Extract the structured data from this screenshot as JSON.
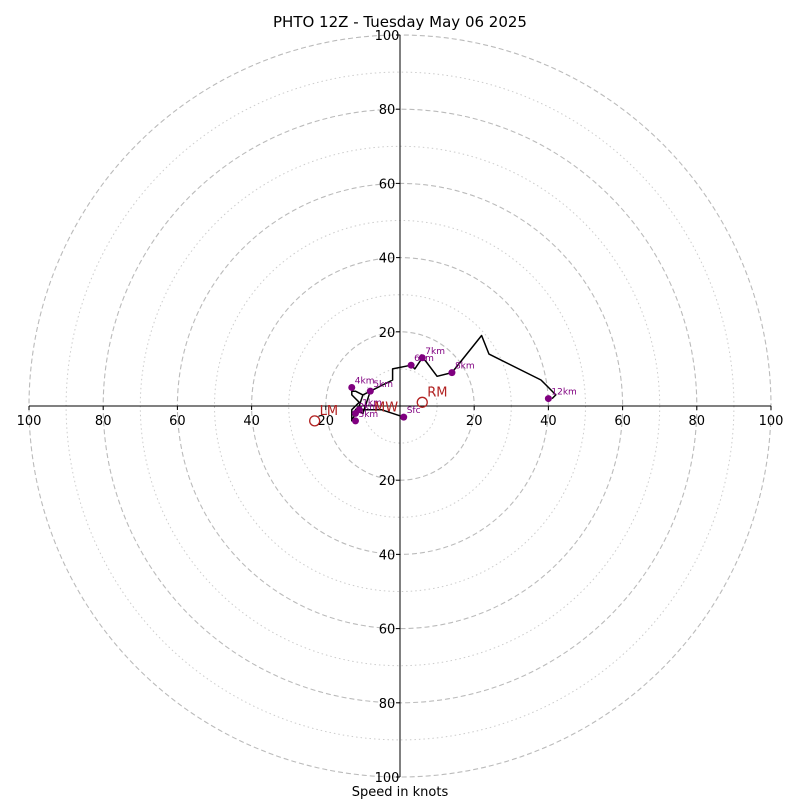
{
  "chart_data": {
    "type": "line",
    "title": "PHTO 12Z - Tuesday May 06 2025",
    "xlabel": "Speed in knots",
    "ylabel": "",
    "xlim": [
      -100,
      100
    ],
    "ylim": [
      -100,
      100
    ],
    "ring_major": [
      20,
      40,
      60,
      80,
      100
    ],
    "ring_minor": [
      10,
      30,
      50,
      70,
      90
    ],
    "x_tick_labels": [
      "100",
      "80",
      "60",
      "40",
      "20",
      "20",
      "40",
      "60",
      "80",
      "100"
    ],
    "x_tick_values": [
      -100,
      -80,
      -60,
      -40,
      -20,
      20,
      40,
      60,
      80,
      100
    ],
    "y_tick_labels": [
      "100",
      "80",
      "60",
      "40",
      "20",
      "20",
      "40",
      "60",
      "80",
      "100"
    ],
    "y_tick_values": [
      100,
      80,
      60,
      40,
      20,
      -20,
      -40,
      -60,
      -80,
      -100
    ],
    "colors": {
      "trace": "#000000",
      "height_points": "#800080",
      "motion": "#b22222",
      "ring_major": "#bbbbbb",
      "ring_minor": "#cccccc"
    },
    "series": [
      {
        "values": [
          [
            1,
            -3
          ],
          [
            -5,
            -1
          ],
          [
            -8,
            -1
          ],
          [
            -10,
            -1
          ],
          [
            -12,
            -2
          ],
          [
            -13,
            -4
          ],
          [
            -13,
            -3
          ],
          [
            -13,
            -1
          ],
          [
            -12,
            0
          ],
          [
            -11,
            1
          ],
          [
            -13,
            3
          ],
          [
            -13,
            4
          ],
          [
            -12,
            4
          ],
          [
            -10,
            3
          ],
          [
            -8,
            4
          ],
          [
            -10,
            3
          ],
          [
            -11,
            0
          ],
          [
            -12,
            -1
          ],
          [
            -10,
            -2
          ],
          [
            -8,
            4
          ],
          [
            -4,
            6
          ],
          [
            -2,
            7
          ],
          [
            -2,
            10
          ],
          [
            3,
            11
          ],
          [
            4,
            10
          ],
          [
            6,
            13
          ],
          [
            7,
            12
          ],
          [
            10,
            8
          ],
          [
            14,
            9
          ],
          [
            22,
            19
          ],
          [
            24,
            14
          ],
          [
            38,
            7
          ],
          [
            40,
            5
          ],
          [
            42,
            3
          ],
          [
            41,
            2
          ]
        ]
      }
    ],
    "height_points": [
      {
        "label": "Sfc",
        "u": 1,
        "v": -3
      },
      {
        "label": "1km",
        "u": -11,
        "v": -1
      },
      {
        "label": "2km",
        "u": -12,
        "v": -2
      },
      {
        "label": "3km",
        "u": -12,
        "v": -4
      },
      {
        "label": "4km",
        "u": -13,
        "v": 5
      },
      {
        "label": "5km",
        "u": -8,
        "v": 4
      },
      {
        "label": "6km",
        "u": 3,
        "v": 11
      },
      {
        "label": "7km",
        "u": 6,
        "v": 13
      },
      {
        "label": "8km",
        "u": 14,
        "v": 9
      },
      {
        "label": "12km",
        "u": 40,
        "v": 2
      }
    ],
    "storm_motion": [
      {
        "label": "RM",
        "u": 6,
        "v": 1
      },
      {
        "label": "LM",
        "u": -23,
        "v": -4
      },
      {
        "label": "MW",
        "u": -7,
        "v": -1
      }
    ]
  }
}
